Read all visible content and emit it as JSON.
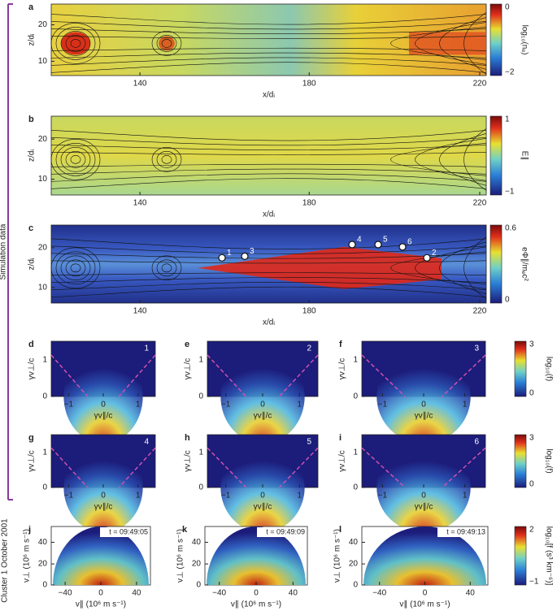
{
  "sidebar": {
    "simulation": "Simulation data",
    "observation": "Cluster 1 October 2001"
  },
  "panels": [
    {
      "letter": "a",
      "yticks": [
        "20",
        "10"
      ],
      "xticks": [
        "140",
        "180",
        "220"
      ],
      "xlabel": "x/dᵢ",
      "ylabel": "z/dᵢ",
      "colorbar": {
        "max": "0",
        "min": "−2",
        "label": "log₁₀(nₑ)"
      }
    },
    {
      "letter": "b",
      "yticks": [
        "20",
        "10"
      ],
      "xticks": [
        "140",
        "180",
        "220"
      ],
      "xlabel": "x/dᵢ",
      "ylabel": "z/dᵢ",
      "colorbar": {
        "max": "1",
        "min": "−1",
        "label": "E∥"
      }
    },
    {
      "letter": "c",
      "yticks": [
        "20",
        "10"
      ],
      "xticks": [
        "140",
        "180",
        "220"
      ],
      "xlabel": "x/dᵢ",
      "ylabel": "z/dᵢ",
      "colorbar": {
        "max": "0.6",
        "min": "0",
        "label": "eΦ∥/mₑc²"
      },
      "markers": [
        "1",
        "3",
        "4",
        "5",
        "6",
        "2"
      ]
    },
    {
      "letter": "d",
      "index": "1",
      "yticks": [
        "1",
        "0"
      ],
      "xticks": [
        "−1",
        "0",
        "1"
      ],
      "xlabel": "γv∥/c",
      "ylabel": "γv⊥/c"
    },
    {
      "letter": "e",
      "index": "2",
      "yticks": [
        "1",
        "0"
      ],
      "xticks": [
        "−1",
        "0",
        "1"
      ],
      "xlabel": "γv∥/c",
      "ylabel": "γv⊥/c"
    },
    {
      "letter": "f",
      "index": "3",
      "yticks": [
        "1",
        "0"
      ],
      "xticks": [
        "−1",
        "0",
        "1"
      ],
      "xlabel": "γv∥/c",
      "ylabel": "γv⊥/c",
      "colorbar": {
        "max": "3",
        "min": "0",
        "label": "log₁₀(f)"
      }
    },
    {
      "letter": "g",
      "index": "4",
      "yticks": [
        "1",
        "0"
      ],
      "xticks": [
        "−1",
        "0",
        "1"
      ],
      "xlabel": "γv∥/c",
      "ylabel": "γv⊥/c"
    },
    {
      "letter": "h",
      "index": "5",
      "yticks": [
        "1",
        "0"
      ],
      "xticks": [
        "−1",
        "0",
        "1"
      ],
      "xlabel": "γv∥/c",
      "ylabel": "γv⊥/c"
    },
    {
      "letter": "i",
      "index": "6",
      "yticks": [
        "1",
        "0"
      ],
      "xticks": [
        "−1",
        "0",
        "1"
      ],
      "xlabel": "γv∥/c",
      "ylabel": "γv⊥/c",
      "colorbar": {
        "max": "3",
        "min": "0",
        "label": "log₁₀(f)"
      }
    },
    {
      "letter": "j",
      "time": "t = 09:49:05",
      "yticks": [
        "40",
        "20",
        "0"
      ],
      "xticks": [
        "−40",
        "0",
        "40"
      ],
      "xlabel": "v∥ (10⁶ m s⁻¹)",
      "ylabel": "v⊥ (10⁶ m s⁻¹)"
    },
    {
      "letter": "k",
      "time": "t = 09:49:09",
      "yticks": [
        "40",
        "20",
        "0"
      ],
      "xticks": [
        "−40",
        "0",
        "40"
      ],
      "xlabel": "v∥ (10⁶ m s⁻¹)",
      "ylabel": "v⊥ (10⁶ m s⁻¹)"
    },
    {
      "letter": "l",
      "time": "t = 09:49:13",
      "yticks": [
        "40",
        "20",
        "0"
      ],
      "xticks": [
        "−40",
        "0",
        "40"
      ],
      "xlabel": "v∥ (10⁶ m s⁻¹)",
      "ylabel": "v⊥ (10⁶ m s⁻¹)",
      "colorbar": {
        "max": "2",
        "min": "−1",
        "label": "log₁₀[f (s³ km⁻⁶)]"
      }
    }
  ]
}
